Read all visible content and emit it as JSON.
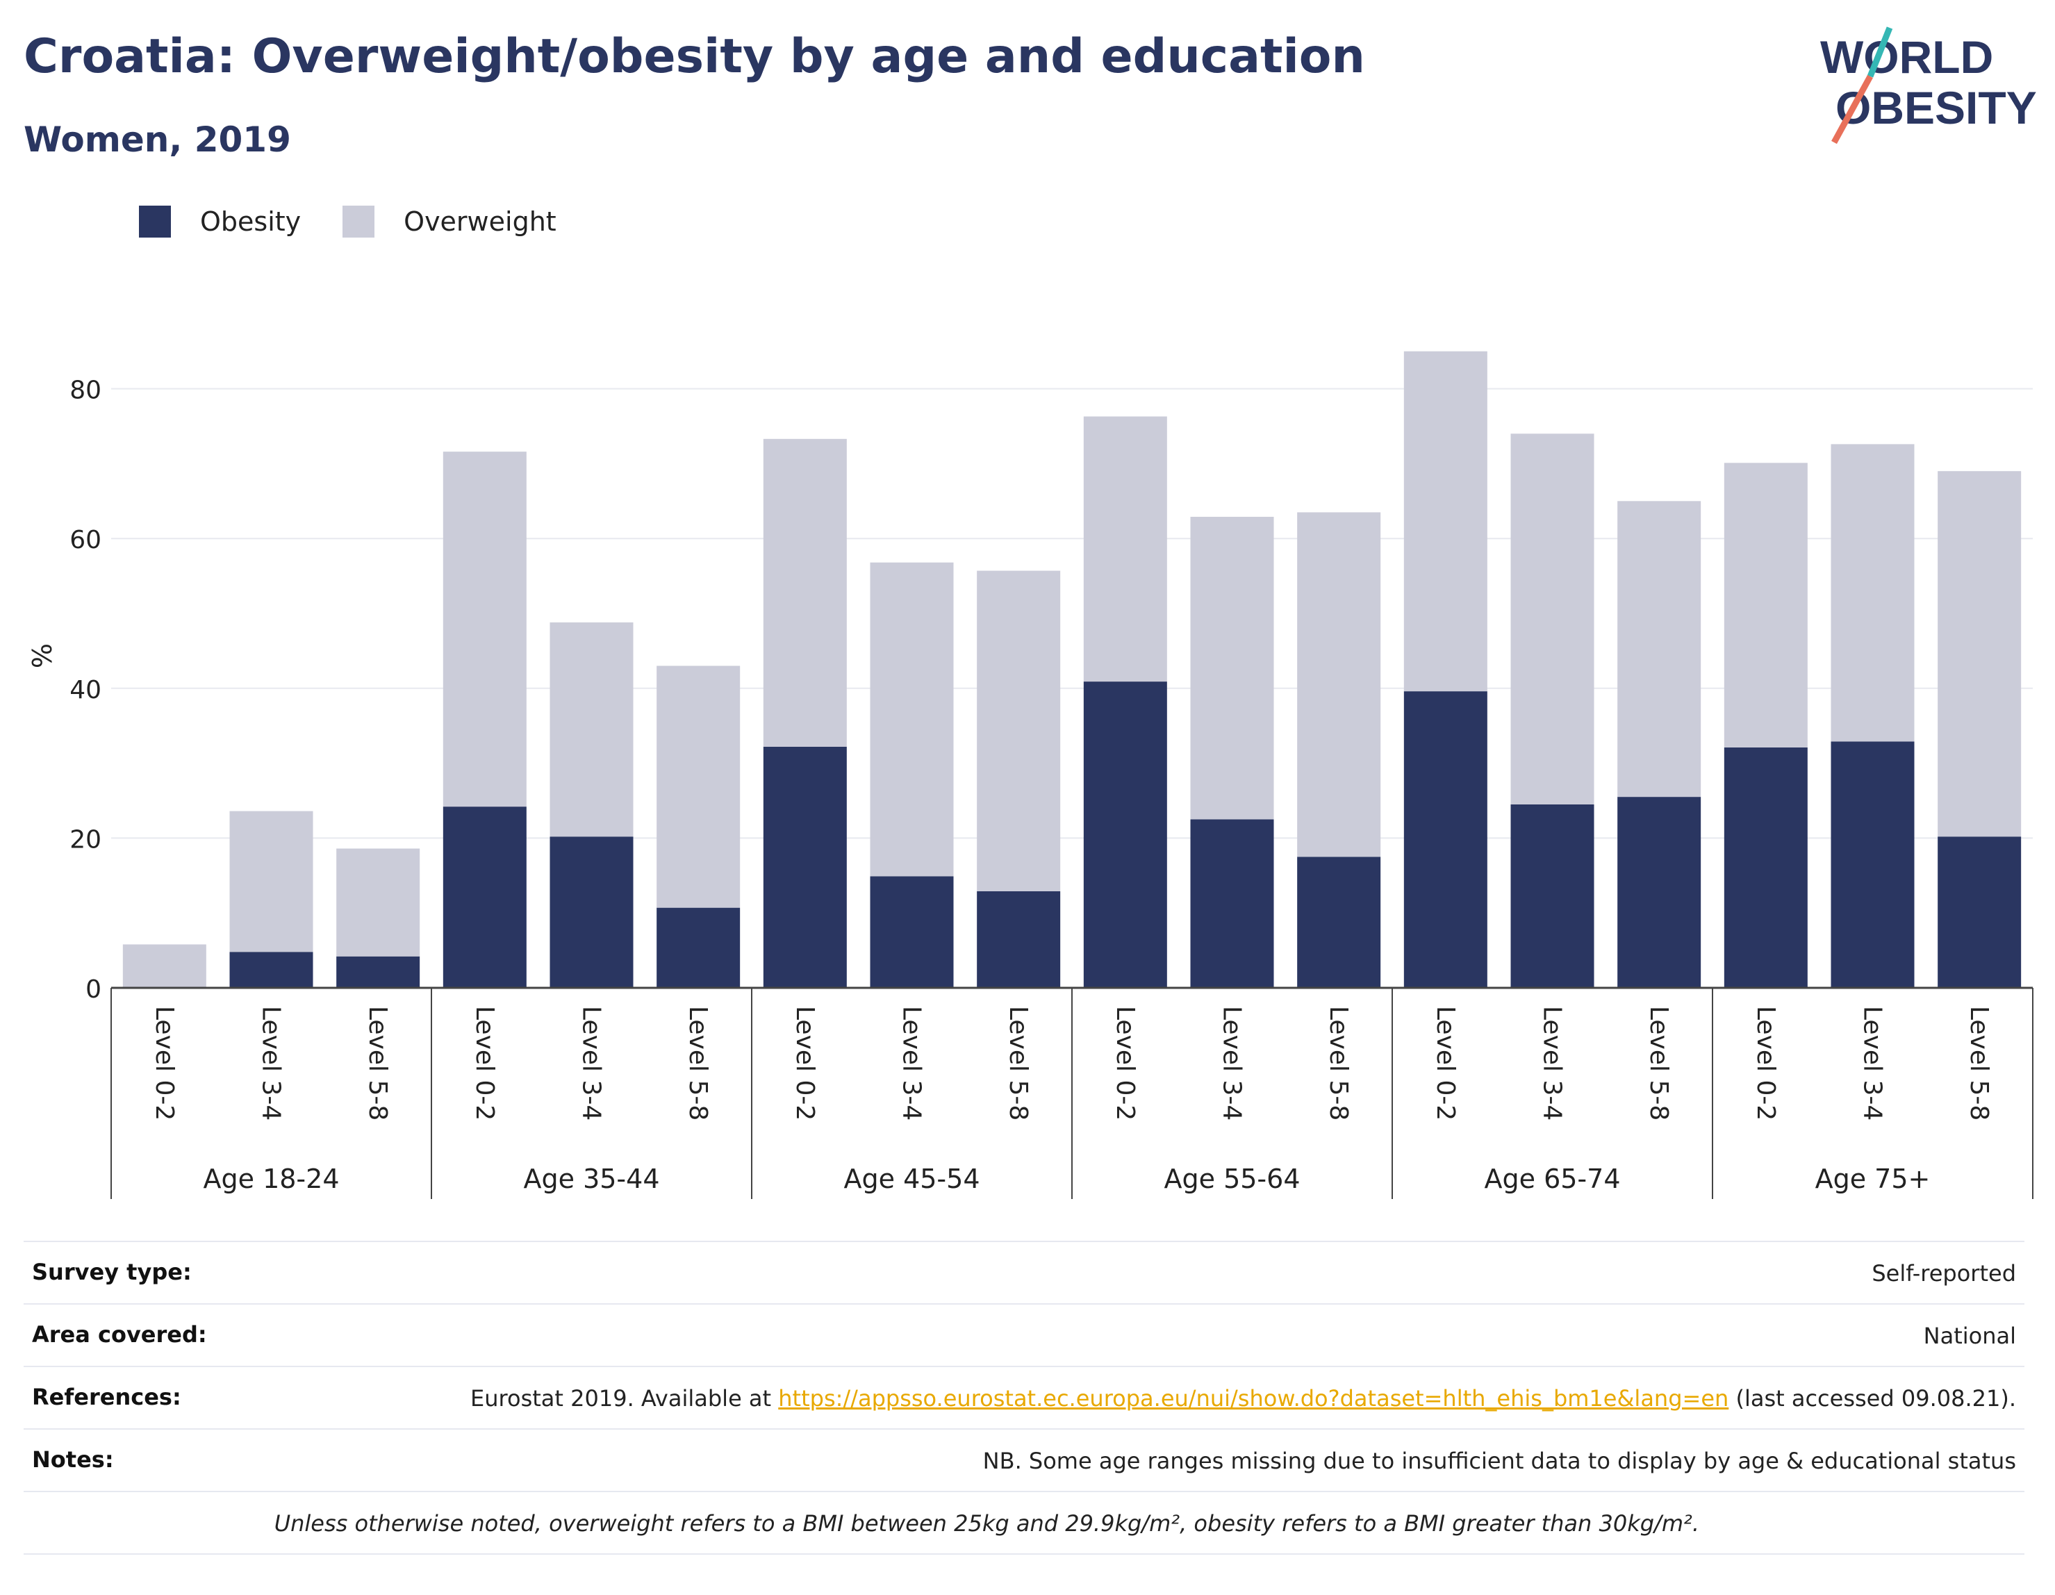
{
  "header": {
    "title": "Croatia: Overweight/obesity by age and education",
    "subtitle": "Women, 2019"
  },
  "logo": {
    "line1": "WORLD",
    "line2": "OBESITY"
  },
  "colors": {
    "obesity": "#2a3661",
    "overweight": "#cbccd9",
    "title": "#2a3661",
    "link": "#e8a800"
  },
  "chart_data": {
    "type": "bar",
    "stacked": true,
    "ylabel": "%",
    "xlabel": "",
    "ylim": [
      0,
      90
    ],
    "yticks": [
      0,
      20,
      40,
      60,
      80
    ],
    "grid": true,
    "legend_position": "top-left",
    "legend": [
      "Obesity",
      "Overweight"
    ],
    "groups": [
      {
        "label": "Age 18-24",
        "categories": [
          "Level 0-2",
          "Level 3-4",
          "Level 5-8"
        ]
      },
      {
        "label": "Age 35-44",
        "categories": [
          "Level 0-2",
          "Level 3-4",
          "Level 5-8"
        ]
      },
      {
        "label": "Age 45-54",
        "categories": [
          "Level 0-2",
          "Level 3-4",
          "Level 5-8"
        ]
      },
      {
        "label": "Age 55-64",
        "categories": [
          "Level 0-2",
          "Level 3-4",
          "Level 5-8"
        ]
      },
      {
        "label": "Age 65-74",
        "categories": [
          "Level 0-2",
          "Level 3-4",
          "Level 5-8"
        ]
      },
      {
        "label": "Age 75+",
        "categories": [
          "Level 0-2",
          "Level 3-4",
          "Level 5-8"
        ]
      }
    ],
    "series": [
      {
        "name": "Obesity",
        "values": [
          0,
          4.8,
          4.2,
          24.2,
          20.2,
          10.7,
          32.2,
          14.9,
          12.9,
          40.9,
          22.5,
          17.5,
          39.6,
          24.5,
          25.5,
          32.1,
          32.9,
          20.2
        ]
      },
      {
        "name": "Overweight",
        "values": [
          5.8,
          18.8,
          14.4,
          47.4,
          28.6,
          32.3,
          41.1,
          41.9,
          42.8,
          35.4,
          40.4,
          46.0,
          45.4,
          49.5,
          39.5,
          38.0,
          39.7,
          48.8
        ]
      }
    ]
  },
  "metadata": [
    {
      "key": "Survey type:",
      "value": "Self-reported"
    },
    {
      "key": "Area covered:",
      "value": "National"
    },
    {
      "key": "References:",
      "value_prefix": "Eurostat 2019. Available at ",
      "link_text": "https://appsso.eurostat.ec.europa.eu/nui/show.do?dataset=hlth_ehis_bm1e&lang=en",
      "value_suffix": " (last accessed 09.08.21)."
    },
    {
      "key": "Notes:",
      "value": "NB. Some age ranges missing due to insufficient data to display by age & educational status"
    }
  ],
  "footnote": "Unless otherwise noted, overweight refers to a BMI between 25kg and 29.9kg/m², obesity refers to a BMI greater than 30kg/m²."
}
